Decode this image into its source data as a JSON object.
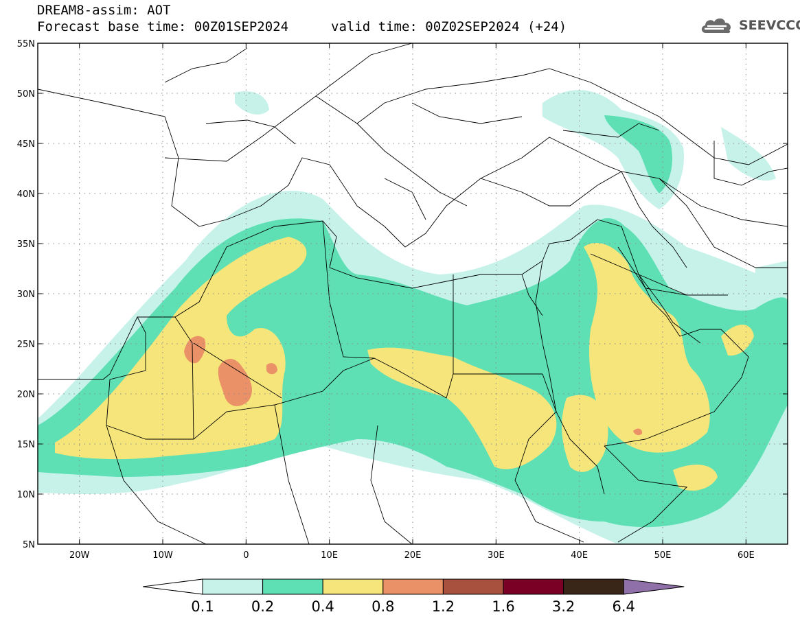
{
  "header": {
    "title": "DREAM8-assim: AOT",
    "base_time": "Forecast base time: 00Z01SEP2024",
    "valid_time": "valid time: 00Z02SEP2024 (+24)"
  },
  "logo": {
    "text": "SEEVCCC",
    "icon": "cloud-logo-icon"
  },
  "map": {
    "lat_labels": [
      "55N",
      "50N",
      "45N",
      "40N",
      "35N",
      "30N",
      "25N",
      "20N",
      "15N",
      "10N",
      "5N"
    ],
    "lon_labels": [
      "20W",
      "10W",
      "0",
      "10E",
      "20E",
      "30E",
      "40E",
      "50E",
      "60E"
    ],
    "lon_range": [
      -25,
      65
    ],
    "lat_range": [
      5,
      55
    ]
  },
  "colorbar": {
    "labels": [
      "0.1",
      "0.2",
      "0.4",
      "0.8",
      "1.2",
      "1.6",
      "3.2",
      "6.4"
    ],
    "colors": [
      "#c6f2ea",
      "#5ee0b4",
      "#f5e57a",
      "#ea9168",
      "#a8513f",
      "#7a0026",
      "#3a2618",
      "#8f70a8"
    ]
  }
}
